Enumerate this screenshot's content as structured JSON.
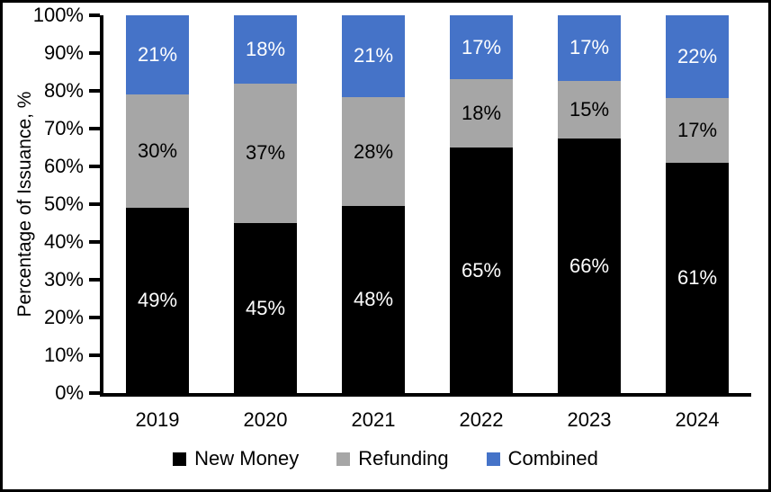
{
  "chart_data": {
    "type": "bar",
    "stacked": true,
    "percent_stacked": true,
    "ylabel": "Percentage of Issuance, %",
    "categories": [
      "2019",
      "2020",
      "2021",
      "2022",
      "2023",
      "2024"
    ],
    "series": [
      {
        "name": "New Money",
        "color": "#000000",
        "label_color": "#FFFFFF",
        "values": [
          49,
          45,
          48,
          65,
          66,
          61
        ]
      },
      {
        "name": "Refunding",
        "color": "#A6A6A6",
        "label_color": "#000000",
        "values": [
          30,
          37,
          28,
          18,
          15,
          17
        ]
      },
      {
        "name": "Combined",
        "color": "#4573C8",
        "label_color": "#FFFFFF",
        "values": [
          21,
          18,
          21,
          17,
          17,
          22
        ]
      }
    ],
    "yticks": [
      0,
      10,
      20,
      30,
      40,
      50,
      60,
      70,
      80,
      90,
      100
    ],
    "ytick_suffix": "%",
    "value_suffix": "%",
    "ylim": [
      0,
      100
    ],
    "gridlines": false,
    "data_labels": true,
    "legend_position": "bottom",
    "frame_border_color": "#000000",
    "axis_color": "#000000"
  }
}
